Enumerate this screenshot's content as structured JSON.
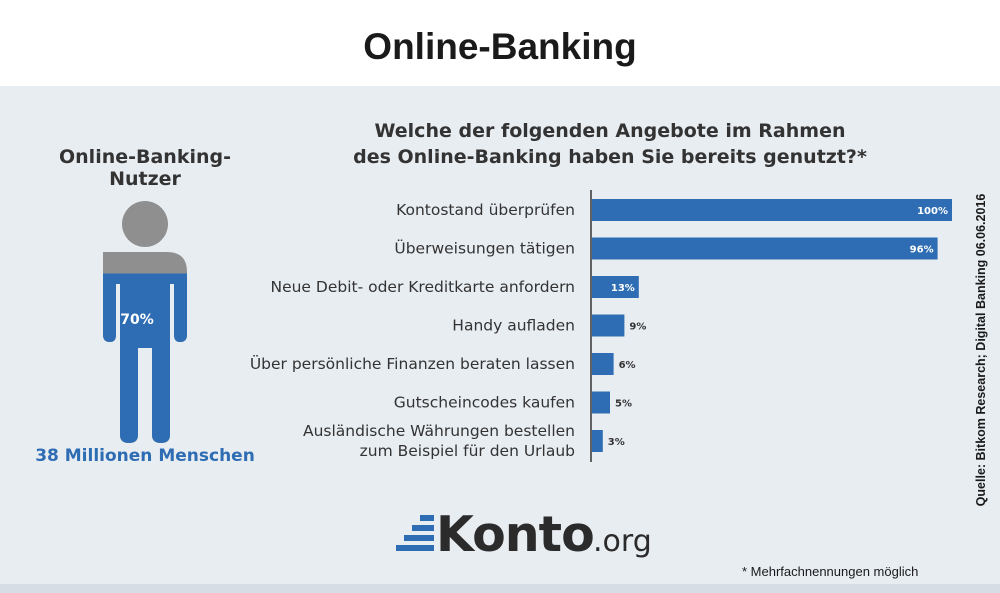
{
  "header": {
    "title": "Online-Banking"
  },
  "left_panel": {
    "title": "Online-Banking-Nutzer",
    "percent_label": "70%",
    "fill_fraction": 0.7,
    "people_label": "38 Millionen Menschen",
    "colors": {
      "fill": "#2e6db3",
      "empty": "#8f8f8f"
    }
  },
  "question": {
    "line1": "Welche der folgenden Angebote im Rahmen",
    "line2": "des Online-Banking haben Sie bereits genutzt?*"
  },
  "chart_data": {
    "type": "bar",
    "orientation": "horizontal",
    "categories": [
      [
        "Kontostand überprüfen"
      ],
      [
        "Überweisungen tätigen"
      ],
      [
        "Neue Debit- oder Kreditkarte anfordern"
      ],
      [
        "Handy aufladen"
      ],
      [
        "Über persönliche Finanzen beraten lassen"
      ],
      [
        "Gutscheincodes kaufen"
      ],
      [
        "Ausländische Währungen bestellen",
        "zum Beispiel für den Urlaub"
      ]
    ],
    "values": [
      100,
      96,
      13,
      9,
      6,
      5,
      3
    ],
    "value_labels": [
      "100%",
      "96%",
      "13%",
      "9%",
      "6%",
      "5%",
      "3%"
    ],
    "xlim": [
      0,
      100
    ],
    "bar_color": "#2e6db3",
    "grid": false
  },
  "source": "Quelle: Bitkom Research; Digital Banking 06.06.2016",
  "logo": {
    "main": "Konto",
    "suffix": ".org",
    "icon": "bar-stack-icon"
  },
  "footnote": "* Mehrfachnennungen möglich"
}
